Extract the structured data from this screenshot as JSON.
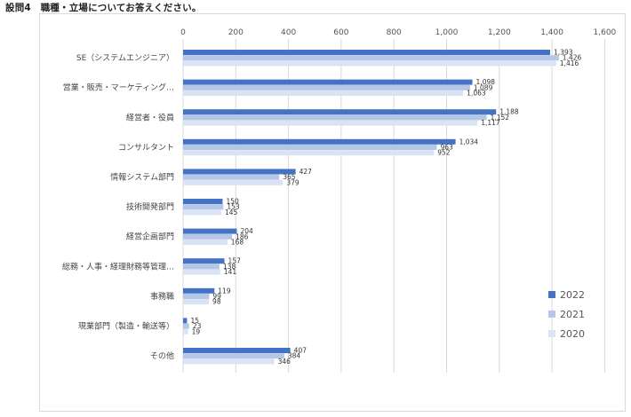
{
  "heading": "設問4　職種・立場についてお答えください。",
  "chart_data": {
    "type": "bar",
    "orientation": "horizontal",
    "title": "",
    "xlabel": "",
    "ylabel": "",
    "xlim": [
      0,
      1600
    ],
    "x_ticks": [
      "0",
      "200",
      "400",
      "600",
      "800",
      "1,000",
      "1,200",
      "1,400",
      "1,600"
    ],
    "grid": true,
    "legend_position": "bottom-right",
    "categories": [
      "SE（システムエンジニア）",
      "営業・販売・マーケティング…",
      "経営者・役員",
      "コンサルタント",
      "情報システム部門",
      "技術開発部門",
      "経営企画部門",
      "総務・人事・経理財務等管理…",
      "事務職",
      "現業部門（製造・輸送等）",
      "その他"
    ],
    "series": [
      {
        "name": "2022",
        "color": "#4472c4",
        "values": [
          1393,
          1098,
          1188,
          1034,
          427,
          150,
          204,
          157,
          119,
          15,
          407
        ],
        "labels": [
          "1,393",
          "1,098",
          "1,188",
          "1,034",
          "427",
          "150",
          "204",
          "157",
          "119",
          "15",
          "407"
        ]
      },
      {
        "name": "2021",
        "color": "#b4c7e7",
        "values": [
          1426,
          1089,
          1152,
          963,
          365,
          153,
          186,
          138,
          99,
          23,
          384
        ],
        "labels": [
          "1,426",
          "1,089",
          "1,152",
          "963",
          "365",
          "153",
          "186",
          "138",
          "99",
          "23",
          "384"
        ]
      },
      {
        "name": "2020",
        "color": "#dae3f3",
        "values": [
          1416,
          1063,
          1117,
          952,
          379,
          145,
          168,
          141,
          98,
          19,
          346
        ],
        "labels": [
          "1,416",
          "1,063",
          "1,117",
          "952",
          "379",
          "145",
          "168",
          "141",
          "98",
          "19",
          "346"
        ]
      }
    ]
  }
}
